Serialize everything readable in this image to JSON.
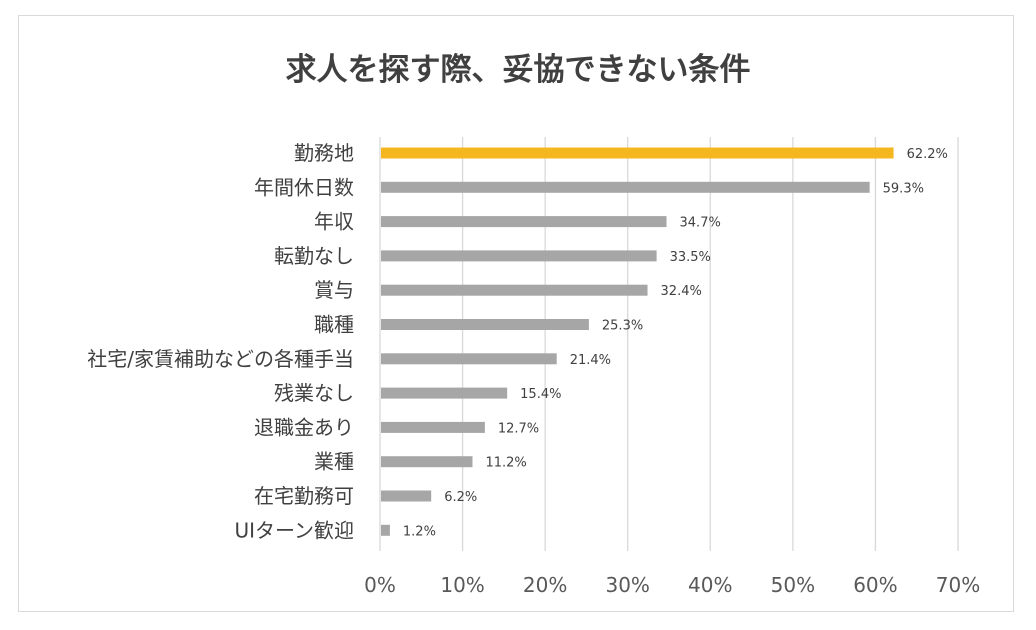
{
  "chart_data": {
    "type": "bar",
    "orientation": "horizontal",
    "title": "求人を探す際、妥協できない条件",
    "categories": [
      "勤務地",
      "年間休日数",
      "年収",
      "転勤なし",
      "賞与",
      "職種",
      "社宅/家賃補助などの各種手当",
      "残業なし",
      "退職金あり",
      "業種",
      "在宅勤務可",
      "UIターン歓迎"
    ],
    "values": [
      62.2,
      59.3,
      34.7,
      33.5,
      32.4,
      25.3,
      21.4,
      15.4,
      12.7,
      11.2,
      6.2,
      1.2
    ],
    "value_labels": [
      "62.2%",
      "59.3%",
      "34.7%",
      "33.5%",
      "32.4%",
      "25.3%",
      "21.4%",
      "15.4%",
      "12.7%",
      "11.2%",
      "6.2%",
      "1.2%"
    ],
    "xlim": [
      0,
      70
    ],
    "x_ticks": [
      "0%",
      "10%",
      "20%",
      "30%",
      "40%",
      "50%",
      "60%",
      "70%"
    ],
    "grid": true,
    "legend": "none",
    "colors": {
      "highlight": "#f4b71f",
      "bar": "#a6a6a6",
      "grid": "#d9d9d9"
    }
  }
}
